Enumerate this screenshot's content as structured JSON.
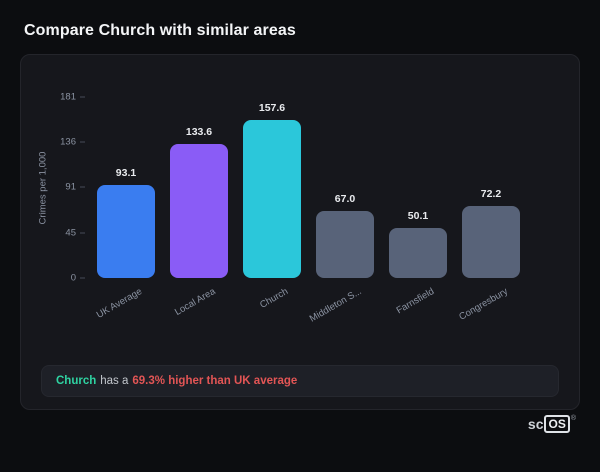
{
  "page": {
    "title": "Compare Church with similar areas"
  },
  "chart_data": {
    "type": "bar",
    "title": "",
    "ylabel": "Crimes per 1,000",
    "categories": [
      "UK Average",
      "Local Area",
      "Church",
      "Middleton S...",
      "Farnsfield",
      "Congresbury"
    ],
    "values": [
      93.1,
      133.6,
      157.6,
      67.0,
      50.1,
      72.2
    ],
    "value_labels": [
      "93.1",
      "133.6",
      "157.6",
      "67.0",
      "50.1",
      "72.2"
    ],
    "bar_colors": [
      "#3a7df0",
      "#8a5cf6",
      "#2bc7da",
      "#586379",
      "#586379",
      "#586379"
    ],
    "yticks": [
      0,
      45,
      91,
      136,
      181
    ],
    "ylim": [
      0,
      181
    ],
    "grid": false,
    "legend": false
  },
  "summary": {
    "subject": "Church",
    "connector": "has a",
    "highlight": "69.3% higher than UK average"
  },
  "colors": {
    "subject_text": "#2fd3a2",
    "highlight_text": "#e25555",
    "background": "#0c0d10",
    "card": "#16171c"
  },
  "logo": {
    "prefix": "sc",
    "boxed": "OS",
    "registered": "®"
  }
}
